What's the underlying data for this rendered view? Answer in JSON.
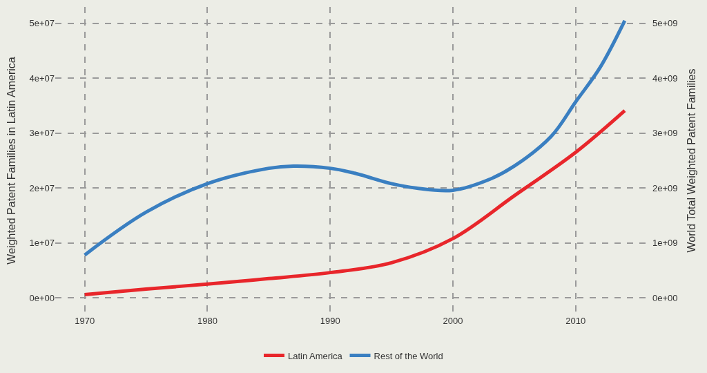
{
  "chart_data": {
    "type": "line",
    "ylabel": "Weighted Patent Families in Latin America",
    "y2label": "World Total Weighted Patent Families",
    "xlim": [
      1967.6,
      2016.2
    ],
    "xticks": [
      1970,
      1980,
      1990,
      2000,
      2010
    ],
    "ylim": [
      -3000000,
      53000000
    ],
    "yticks": [
      {
        "value": 0,
        "label": "0e+00"
      },
      {
        "value": 10000000,
        "label": "1e+07"
      },
      {
        "value": 20000000,
        "label": "2e+07"
      },
      {
        "value": 30000000,
        "label": "3e+07"
      },
      {
        "value": 40000000,
        "label": "4e+07"
      },
      {
        "value": 50000000,
        "label": "5e+07"
      }
    ],
    "y2lim": [
      -300000000,
      5300000000
    ],
    "y2ticks": [
      {
        "value": 0,
        "label": "0e+00"
      },
      {
        "value": 1000000000,
        "label": "1e+09"
      },
      {
        "value": 2000000000,
        "label": "2e+09"
      },
      {
        "value": 3000000000,
        "label": "3e+09"
      },
      {
        "value": 4000000000,
        "label": "4e+09"
      },
      {
        "value": 5000000000,
        "label": "5e+09"
      }
    ],
    "grid": true,
    "legend": "bottom",
    "line_style": "solid",
    "marker": "none",
    "series": [
      {
        "name": "Latin America",
        "color": "#e8262b",
        "x": [
          1970,
          1975,
          1980,
          1985,
          1990,
          1995,
          2000,
          2005,
          2010,
          2014
        ],
        "values": [
          600000,
          1600000,
          2500000,
          3500000,
          4600000,
          6400000,
          10800000,
          18600000,
          26500000,
          34100000
        ]
      },
      {
        "name": "Rest of the World",
        "color": "#3a7fc1",
        "axis": "y2",
        "x": [
          1970,
          1975,
          1980,
          1985,
          1987,
          1990,
          1992,
          1995,
          1997,
          2000,
          2003,
          2005,
          2008,
          2010,
          2012,
          2014
        ],
        "values": [
          780000000,
          1560000000,
          2080000000,
          2360000000,
          2400000000,
          2360000000,
          2270000000,
          2080000000,
          2000000000,
          1960000000,
          2160000000,
          2400000000,
          2940000000,
          3570000000,
          4200000000,
          5050000000
        ]
      }
    ]
  }
}
